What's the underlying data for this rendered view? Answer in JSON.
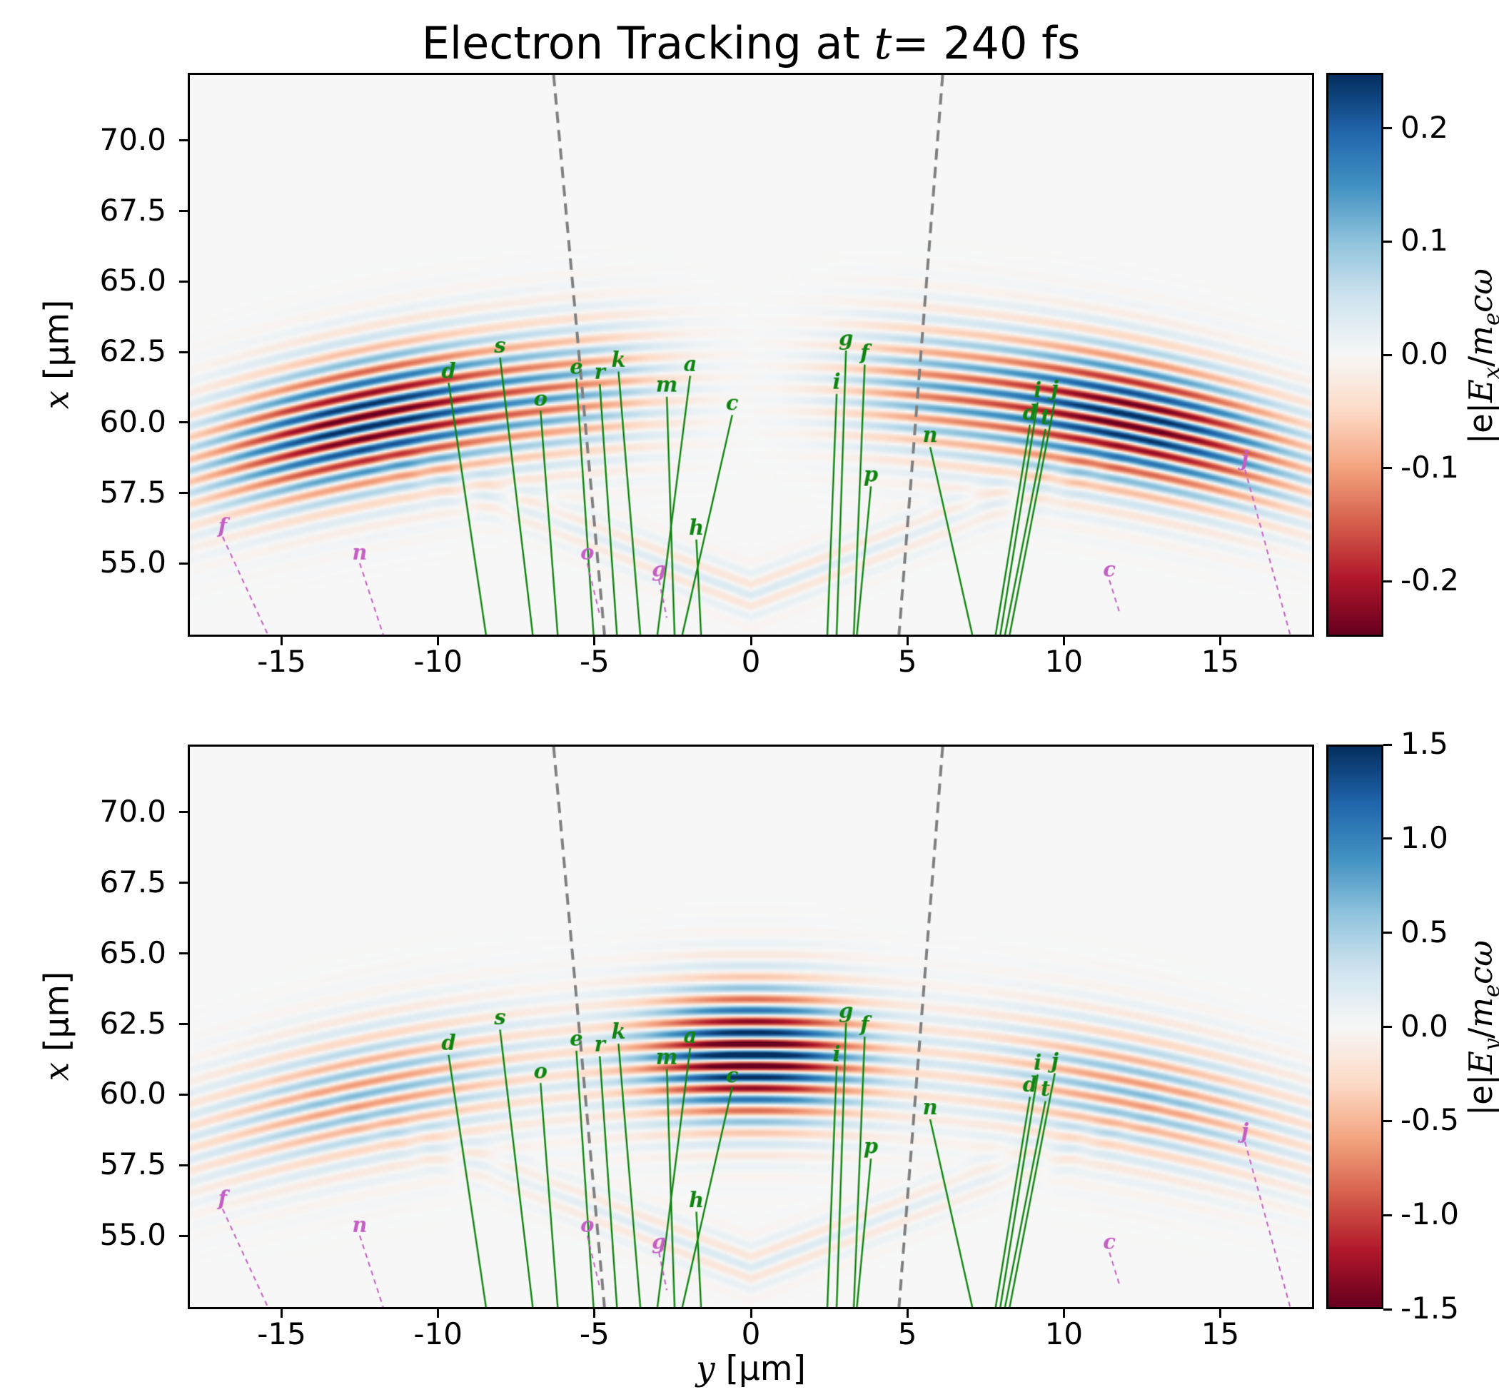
{
  "title": {
    "prefix": "Electron Tracking at ",
    "var": "t",
    "suffix": "= 240 fs"
  },
  "x_axis": {
    "label_var": "y",
    "label_unit": " [μm]"
  },
  "y_axis": {
    "label_var": "x",
    "label_unit": " [μm]"
  },
  "chart_data": {
    "type": "heatmap",
    "title": "Electron Tracking at t= 240 fs",
    "xlabel": "y [μm]",
    "ylabel": "x [μm]",
    "xlim": [
      -18,
      18
    ],
    "ylim": [
      52.4,
      72.4
    ],
    "x_tick_values": [
      -15,
      -10,
      -5,
      0,
      5,
      10,
      15
    ],
    "x_tick_labels": [
      "-15",
      "-10",
      "-5",
      "0",
      "5",
      "10",
      "15"
    ],
    "y_tick_values": [
      70,
      67.5,
      65,
      62.5,
      60,
      57.5,
      55
    ],
    "y_tick_labels": [
      "70.0",
      "67.5",
      "65.0",
      "62.5",
      "60.0",
      "57.5",
      "55.0"
    ],
    "colormap": "RdBu",
    "colormap_stops": [
      "#67001f",
      "#b2182b",
      "#d6604d",
      "#f4a582",
      "#fddbc7",
      "#f7f7f7",
      "#d1e5f0",
      "#92c5de",
      "#4393c3",
      "#2166ac",
      "#053061"
    ],
    "wavefront": {
      "lambda": 0.8,
      "x_center": 61.4,
      "curvature_R": 55,
      "sigma_x": 2.3
    },
    "wake": {
      "x0": 53.8,
      "slope": 0.42,
      "sigma": 0.9,
      "amp_rel": 0.15,
      "y_decay": 9
    },
    "cone_lines": [
      {
        "y_top": -6.33,
        "y_bottom": -4.7
      },
      {
        "y_top": 6.15,
        "y_bottom": 4.75
      }
    ],
    "panels": [
      {
        "id": "Ex",
        "vmin": -0.249,
        "vmax": 0.249,
        "label_parts": {
          "abs": "|e|",
          "E": "E",
          "Esub": "x",
          "slash": "/",
          "m": "m",
          "msub": "e",
          "tail": "cω"
        },
        "colorbar_tick_values": [
          0.2,
          0.1,
          0.0,
          -0.1,
          -0.2
        ],
        "colorbar_tick_labels": [
          "0.2",
          "0.1",
          "0.0",
          "-0.1",
          "-0.2"
        ],
        "field": {
          "amp_outer": 0.27,
          "outer_center": 12.3,
          "outer_width": 5.0,
          "amp_inner": 0.085,
          "inner_center": 5.5,
          "inner_width": 3.0
        }
      },
      {
        "id": "Ey",
        "vmin": -1.5,
        "vmax": 1.5,
        "label_parts": {
          "abs": "|e|",
          "E": "E",
          "Esub": "y",
          "slash": "/",
          "m": "m",
          "msub": "e",
          "tail": "cω"
        },
        "colorbar_tick_values": [
          1.5,
          1.0,
          0.5,
          0.0,
          -0.5,
          -1.0,
          -1.5
        ],
        "colorbar_tick_labels": [
          "1.5",
          "1.0",
          "0.5",
          "0.0",
          "-0.5",
          "-1.0",
          "-1.5"
        ],
        "field": {
          "amp_center": 1.7,
          "center_width": 3.3,
          "amp_outer": 0.55,
          "outer_center": 12.3,
          "outer_width": 4.6,
          "base": 0.12
        }
      }
    ],
    "tracks": {
      "green_color": "#108410",
      "magenta_color": "#c45ec4",
      "green": [
        {
          "label": "d",
          "end_y": -9.7,
          "end_x": 61.4,
          "start_y": -8.5
        },
        {
          "label": "s",
          "end_y": -8.05,
          "end_x": 62.3,
          "start_y": -7.0
        },
        {
          "label": "o",
          "end_y": -6.75,
          "end_x": 60.4,
          "start_y": -6.2
        },
        {
          "label": "e",
          "end_y": -5.6,
          "end_x": 61.55,
          "start_y": -5.05
        },
        {
          "label": "r",
          "end_y": -4.85,
          "end_x": 61.35,
          "start_y": -4.3
        },
        {
          "label": "k",
          "end_y": -4.25,
          "end_x": 61.8,
          "start_y": -3.55
        },
        {
          "label": "m",
          "end_y": -2.7,
          "end_x": 60.9,
          "start_y": -2.45
        },
        {
          "label": "a",
          "end_y": -1.95,
          "end_x": 61.65,
          "start_y": -3.0
        },
        {
          "label": "c",
          "end_y": -0.6,
          "end_x": 60.25,
          "start_y": -2.2
        },
        {
          "label": "h",
          "end_y": -1.75,
          "end_x": 55.8,
          "start_y": -1.6
        },
        {
          "label": "i",
          "end_y": 2.75,
          "end_x": 61.0,
          "start_y": 2.45
        },
        {
          "label": "g",
          "end_y": 3.05,
          "end_x": 62.55,
          "start_y": 2.75
        },
        {
          "label": "f",
          "end_y": 3.65,
          "end_x": 62.05,
          "start_y": 3.3
        },
        {
          "label": "p",
          "end_y": 3.85,
          "end_x": 57.7,
          "start_y": 3.4
        },
        {
          "label": "n",
          "end_y": 5.75,
          "end_x": 59.1,
          "start_y": 7.1
        },
        {
          "label": "i",
          "end_y": 9.2,
          "end_x": 60.7,
          "start_y": 8.0
        },
        {
          "label": "j",
          "end_y": 9.75,
          "end_x": 60.75,
          "start_y": 8.3
        },
        {
          "label": "d",
          "end_y": 8.95,
          "end_x": 59.9,
          "start_y": 7.85
        },
        {
          "label": "t",
          "end_y": 9.45,
          "end_x": 59.75,
          "start_y": 8.15
        }
      ],
      "magenta": [
        {
          "label": "f",
          "end_y": -16.95,
          "end_x": 55.9,
          "tail_y": -15.5,
          "tail_x": 52.4
        },
        {
          "label": "n",
          "end_y": -12.55,
          "end_x": 54.95,
          "tail_y": -11.8,
          "tail_x": 52.4
        },
        {
          "label": "o",
          "end_y": -5.25,
          "end_x": 54.95,
          "tail_y": -4.85,
          "tail_x": 53.1
        },
        {
          "label": "g",
          "end_y": -2.95,
          "end_x": 54.35,
          "tail_y": -2.7,
          "tail_x": 53.0
        },
        {
          "label": "c",
          "end_y": 11.5,
          "end_x": 54.35,
          "tail_y": 11.85,
          "tail_x": 53.1
        },
        {
          "label": "j",
          "end_y": 15.85,
          "end_x": 58.3,
          "tail_y": 17.3,
          "tail_x": 52.4
        }
      ]
    }
  }
}
